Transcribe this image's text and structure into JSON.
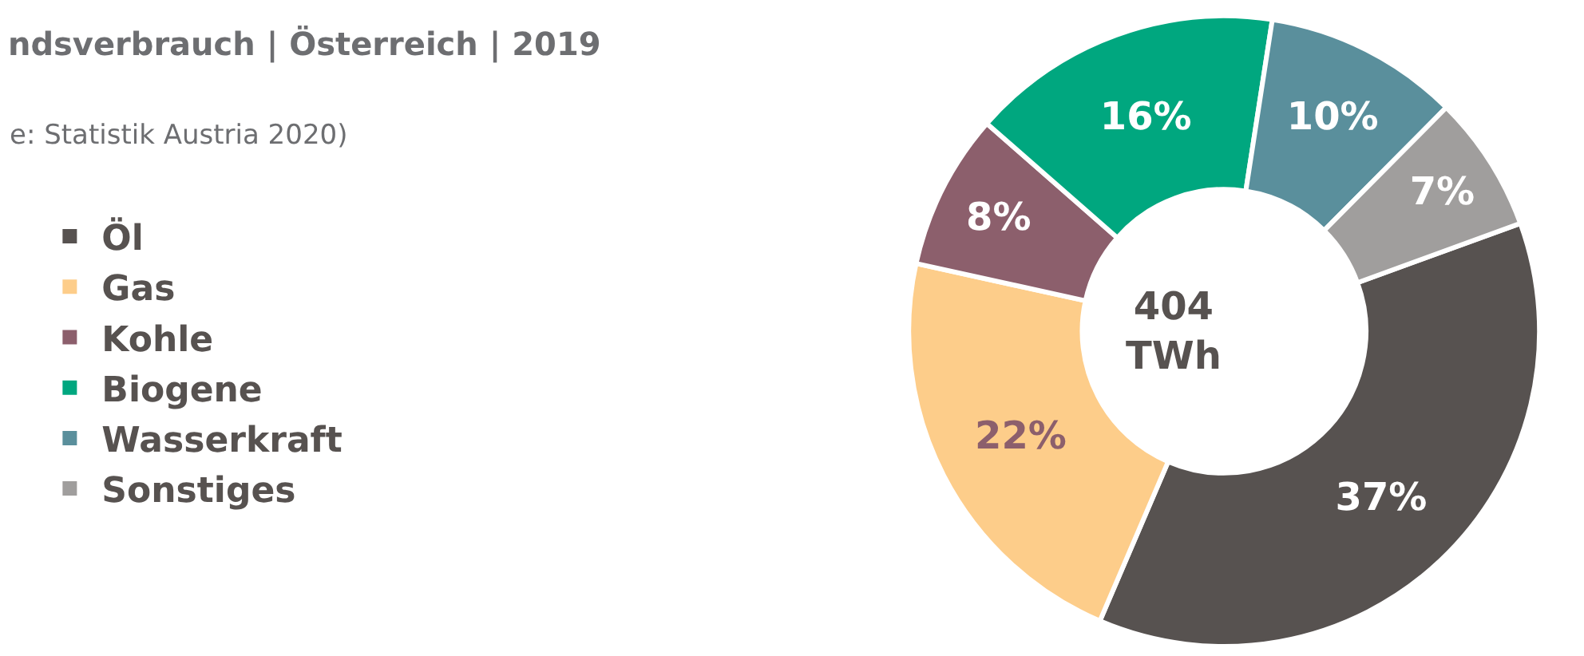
{
  "chart_data": {
    "type": "donut",
    "title": "ndsverbrauch | Österreich | 2019",
    "subtitle": "e: Statistik Austria 2020)",
    "categories": [
      "Öl",
      "Gas",
      "Kohle",
      "Biogene",
      "Wasserkraft",
      "Sonstiges"
    ],
    "values": [
      37,
      22,
      8,
      16,
      10,
      7
    ],
    "value_labels": [
      "37%",
      "22%",
      "8%",
      "16%",
      "10%",
      "7%"
    ],
    "colors": [
      "#575250",
      "#fdcd8a",
      "#8c5f6c",
      "#00a77f",
      "#5a8f9c",
      "#a09e9d"
    ],
    "annotations": [
      "404\nTWh"
    ],
    "legend": "left"
  }
}
